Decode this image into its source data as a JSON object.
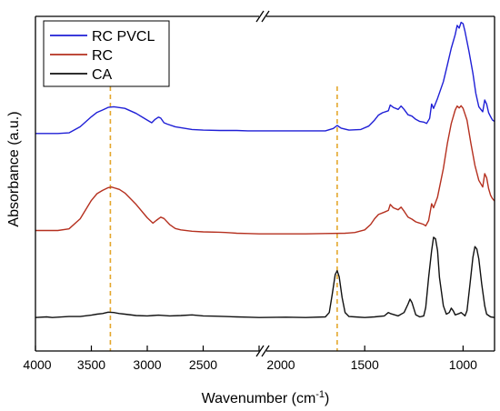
{
  "chart_data": {
    "type": "line",
    "title": "",
    "xlabel_main": "Wavenumber (cm",
    "xlabel_sup": "-1",
    "xlabel_close": ")",
    "ylabel": "Absorbance (a.u.)",
    "x_reversed": true,
    "axis_break": true,
    "x_segments": [
      {
        "from": 4000,
        "to": 2000,
        "ticks": [
          4000,
          3500,
          3000,
          2500,
          2000
        ]
      },
      {
        "from": 2000,
        "to": 840,
        "ticks": [
          1500,
          1000
        ]
      }
    ],
    "y_ticks_shown": false,
    "ylim": [
      0,
      10
    ],
    "legend_position": "top-left",
    "reference_lines": [
      {
        "x": 3330,
        "color": "#e4a72c"
      },
      {
        "x": 1640,
        "color": "#e4a72c"
      }
    ],
    "series": [
      {
        "name": "RC PVCL",
        "color": "#1f1fd6",
        "points": [
          [
            4000,
            6.5
          ],
          [
            3800,
            6.5
          ],
          [
            3700,
            6.52
          ],
          [
            3600,
            6.7
          ],
          [
            3500,
            7.0
          ],
          [
            3450,
            7.13
          ],
          [
            3400,
            7.2
          ],
          [
            3350,
            7.28
          ],
          [
            3300,
            7.3
          ],
          [
            3200,
            7.25
          ],
          [
            3100,
            7.1
          ],
          [
            3000,
            6.9
          ],
          [
            2960,
            6.82
          ],
          [
            2930,
            6.92
          ],
          [
            2900,
            6.99
          ],
          [
            2880,
            6.96
          ],
          [
            2850,
            6.82
          ],
          [
            2820,
            6.78
          ],
          [
            2750,
            6.7
          ],
          [
            2600,
            6.62
          ],
          [
            2500,
            6.6
          ],
          [
            2350,
            6.59
          ],
          [
            2300,
            6.59
          ],
          [
            2200,
            6.59
          ],
          [
            2100,
            6.58
          ],
          [
            2000,
            6.58
          ],
          [
            1900,
            6.58
          ],
          [
            1800,
            6.58
          ],
          [
            1700,
            6.58
          ],
          [
            1660,
            6.65
          ],
          [
            1640,
            6.74
          ],
          [
            1620,
            6.66
          ],
          [
            1580,
            6.6
          ],
          [
            1520,
            6.62
          ],
          [
            1480,
            6.72
          ],
          [
            1450,
            6.9
          ],
          [
            1430,
            7.05
          ],
          [
            1410,
            7.12
          ],
          [
            1380,
            7.18
          ],
          [
            1370,
            7.35
          ],
          [
            1355,
            7.28
          ],
          [
            1330,
            7.22
          ],
          [
            1315,
            7.32
          ],
          [
            1300,
            7.22
          ],
          [
            1280,
            7.06
          ],
          [
            1260,
            7.02
          ],
          [
            1240,
            6.92
          ],
          [
            1220,
            6.86
          ],
          [
            1200,
            6.84
          ],
          [
            1185,
            6.8
          ],
          [
            1170,
            6.95
          ],
          [
            1160,
            7.38
          ],
          [
            1150,
            7.25
          ],
          [
            1130,
            7.55
          ],
          [
            1100,
            8.05
          ],
          [
            1080,
            8.55
          ],
          [
            1060,
            9.05
          ],
          [
            1040,
            9.45
          ],
          [
            1030,
            9.73
          ],
          [
            1020,
            9.65
          ],
          [
            1010,
            9.82
          ],
          [
            1000,
            9.78
          ],
          [
            990,
            9.55
          ],
          [
            970,
            8.95
          ],
          [
            950,
            8.3
          ],
          [
            935,
            7.7
          ],
          [
            920,
            7.3
          ],
          [
            900,
            7.15
          ],
          [
            890,
            7.5
          ],
          [
            880,
            7.38
          ],
          [
            870,
            7.12
          ],
          [
            860,
            7.0
          ],
          [
            850,
            6.9
          ],
          [
            840,
            6.86
          ]
        ]
      },
      {
        "name": "RC",
        "color": "#b5301f",
        "points": [
          [
            4000,
            3.6
          ],
          [
            3800,
            3.6
          ],
          [
            3700,
            3.65
          ],
          [
            3600,
            3.95
          ],
          [
            3500,
            4.5
          ],
          [
            3450,
            4.7
          ],
          [
            3400,
            4.8
          ],
          [
            3350,
            4.88
          ],
          [
            3320,
            4.9
          ],
          [
            3250,
            4.83
          ],
          [
            3200,
            4.72
          ],
          [
            3100,
            4.38
          ],
          [
            3000,
            3.98
          ],
          [
            2950,
            3.82
          ],
          [
            2920,
            3.9
          ],
          [
            2880,
            4.0
          ],
          [
            2850,
            3.96
          ],
          [
            2800,
            3.78
          ],
          [
            2750,
            3.66
          ],
          [
            2700,
            3.62
          ],
          [
            2600,
            3.58
          ],
          [
            2500,
            3.56
          ],
          [
            2350,
            3.55
          ],
          [
            2300,
            3.54
          ],
          [
            2250,
            3.53
          ],
          [
            2200,
            3.52
          ],
          [
            2100,
            3.51
          ],
          [
            2000,
            3.5
          ],
          [
            1900,
            3.5
          ],
          [
            1800,
            3.5
          ],
          [
            1700,
            3.51
          ],
          [
            1600,
            3.52
          ],
          [
            1550,
            3.54
          ],
          [
            1500,
            3.62
          ],
          [
            1470,
            3.78
          ],
          [
            1450,
            3.95
          ],
          [
            1430,
            4.08
          ],
          [
            1400,
            4.15
          ],
          [
            1380,
            4.2
          ],
          [
            1370,
            4.38
          ],
          [
            1355,
            4.28
          ],
          [
            1330,
            4.22
          ],
          [
            1315,
            4.3
          ],
          [
            1300,
            4.18
          ],
          [
            1280,
            4.0
          ],
          [
            1260,
            3.94
          ],
          [
            1240,
            3.86
          ],
          [
            1220,
            3.82
          ],
          [
            1200,
            3.78
          ],
          [
            1190,
            3.74
          ],
          [
            1175,
            3.9
          ],
          [
            1160,
            4.4
          ],
          [
            1150,
            4.28
          ],
          [
            1130,
            4.6
          ],
          [
            1100,
            5.45
          ],
          [
            1080,
            6.2
          ],
          [
            1060,
            6.8
          ],
          [
            1040,
            7.2
          ],
          [
            1030,
            7.32
          ],
          [
            1020,
            7.26
          ],
          [
            1010,
            7.33
          ],
          [
            1000,
            7.25
          ],
          [
            980,
            6.9
          ],
          [
            960,
            6.2
          ],
          [
            940,
            5.55
          ],
          [
            920,
            5.1
          ],
          [
            900,
            4.9
          ],
          [
            890,
            5.3
          ],
          [
            880,
            5.18
          ],
          [
            870,
            4.85
          ],
          [
            860,
            4.65
          ],
          [
            850,
            4.55
          ],
          [
            840,
            4.48
          ]
        ]
      },
      {
        "name": "CA",
        "color": "#111111",
        "points": [
          [
            4000,
            1.0
          ],
          [
            3900,
            1.02
          ],
          [
            3850,
            1.0
          ],
          [
            3800,
            1.01
          ],
          [
            3700,
            1.03
          ],
          [
            3600,
            1.03
          ],
          [
            3500,
            1.07
          ],
          [
            3450,
            1.1
          ],
          [
            3400,
            1.12
          ],
          [
            3350,
            1.16
          ],
          [
            3300,
            1.15
          ],
          [
            3250,
            1.12
          ],
          [
            3200,
            1.1
          ],
          [
            3100,
            1.06
          ],
          [
            3000,
            1.05
          ],
          [
            2950,
            1.06
          ],
          [
            2900,
            1.07
          ],
          [
            2800,
            1.05
          ],
          [
            2700,
            1.06
          ],
          [
            2600,
            1.08
          ],
          [
            2500,
            1.05
          ],
          [
            2400,
            1.04
          ],
          [
            2300,
            1.03
          ],
          [
            2200,
            1.02
          ],
          [
            2100,
            1.01
          ],
          [
            2000,
            1.0
          ],
          [
            1900,
            1.01
          ],
          [
            1800,
            1.0
          ],
          [
            1700,
            1.02
          ],
          [
            1680,
            1.15
          ],
          [
            1665,
            1.7
          ],
          [
            1650,
            2.28
          ],
          [
            1640,
            2.4
          ],
          [
            1630,
            2.22
          ],
          [
            1615,
            1.6
          ],
          [
            1600,
            1.15
          ],
          [
            1580,
            1.03
          ],
          [
            1550,
            1.02
          ],
          [
            1500,
            1.0
          ],
          [
            1450,
            1.02
          ],
          [
            1400,
            1.05
          ],
          [
            1380,
            1.15
          ],
          [
            1370,
            1.12
          ],
          [
            1330,
            1.05
          ],
          [
            1300,
            1.15
          ],
          [
            1280,
            1.4
          ],
          [
            1270,
            1.55
          ],
          [
            1260,
            1.45
          ],
          [
            1240,
            1.08
          ],
          [
            1220,
            1.02
          ],
          [
            1200,
            1.05
          ],
          [
            1190,
            1.3
          ],
          [
            1175,
            2.2
          ],
          [
            1160,
            3.0
          ],
          [
            1150,
            3.4
          ],
          [
            1140,
            3.35
          ],
          [
            1130,
            3.0
          ],
          [
            1120,
            2.2
          ],
          [
            1100,
            1.35
          ],
          [
            1085,
            1.1
          ],
          [
            1070,
            1.15
          ],
          [
            1060,
            1.28
          ],
          [
            1050,
            1.2
          ],
          [
            1040,
            1.08
          ],
          [
            1020,
            1.12
          ],
          [
            1010,
            1.15
          ],
          [
            1000,
            1.1
          ],
          [
            990,
            1.05
          ],
          [
            980,
            1.2
          ],
          [
            965,
            2.0
          ],
          [
            950,
            2.8
          ],
          [
            940,
            3.12
          ],
          [
            930,
            3.05
          ],
          [
            920,
            2.75
          ],
          [
            905,
            2.0
          ],
          [
            890,
            1.35
          ],
          [
            880,
            1.1
          ],
          [
            860,
            1.02
          ],
          [
            840,
            1.0
          ]
        ]
      }
    ]
  }
}
